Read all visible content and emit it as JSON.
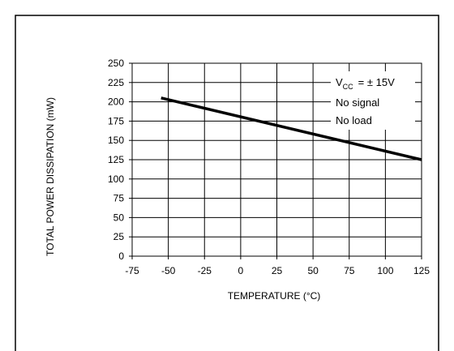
{
  "chart_data": {
    "type": "line",
    "xlabel": "TEMPERATURE (°C)",
    "ylabel": "TOTAL POWER DISSIPATION (mW)",
    "xlim": [
      -75,
      125
    ],
    "ylim": [
      0,
      250
    ],
    "xticks": [
      "-75",
      "-50",
      "-25",
      "0",
      "25",
      "50",
      "75",
      "100",
      "125"
    ],
    "yticks": [
      "0",
      "25",
      "50",
      "75",
      "100",
      "125",
      "150",
      "175",
      "200",
      "225",
      "250"
    ],
    "grid": true,
    "series": [
      {
        "x": [
          -55,
          125
        ],
        "y": [
          205,
          125
        ]
      }
    ],
    "annotation": {
      "vcc_prefix": "V",
      "vcc_sub": "CC",
      "vcc_value": "= ± 15V",
      "line2": "No signal",
      "line3": "No load"
    }
  }
}
